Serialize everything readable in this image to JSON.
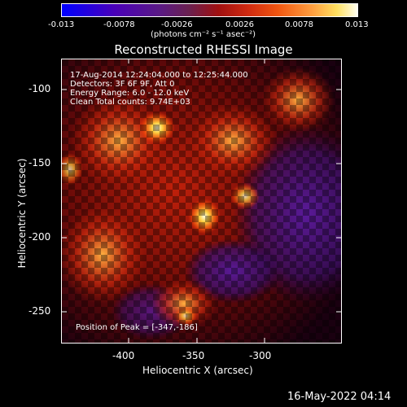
{
  "colorbar": {
    "ticks": [
      "-0.013",
      "-0.0078",
      "-0.0026",
      "0.0026",
      "0.0078",
      "0.013"
    ],
    "units": "(photons cm⁻² s⁻¹ asec⁻²)"
  },
  "title": "Reconstructed RHESSI Image",
  "info": {
    "time": "17-Aug-2014 12:24:04.000 to 12:25:44.000",
    "detectors": "Detectors: 3F 6F 9F, Att 0",
    "energy": "Energy Range: 6.0 - 12.0 keV",
    "clean": "Clean      Total counts: 9.74E+03",
    "peak": "Position of Peak = [-347,-186]"
  },
  "axes": {
    "xlabel": "Heliocentric X (arcsec)",
    "ylabel": "Heliocentric Y (arcsec)",
    "xticks": [
      "-400",
      "-350",
      "-300"
    ],
    "yticks": [
      "-100",
      "-150",
      "-200",
      "-250"
    ],
    "xrange": [
      -442,
      -340
    ],
    "yrange": [
      -275,
      -80
    ]
  },
  "footer": {
    "datestamp": "16-May-2022 04:14"
  },
  "colors": {
    "background": "#000000",
    "text": "#ffffff"
  }
}
